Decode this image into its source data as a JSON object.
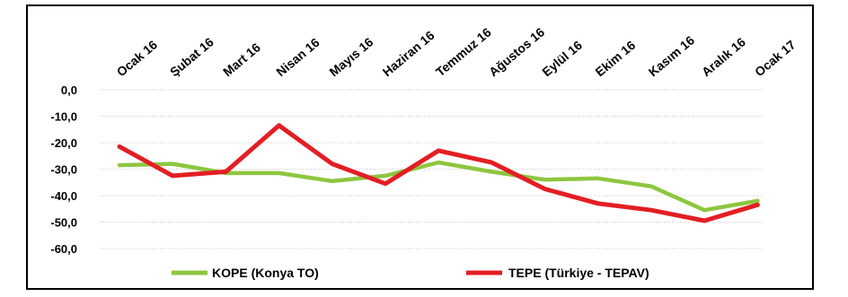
{
  "chart_data": {
    "type": "line",
    "categories": [
      "Ocak 16",
      "Şubat 16",
      "Mart 16",
      "Nisan 16",
      "Mayıs 16",
      "Haziran 16",
      "Temmuz 16",
      "Ağustos 16",
      "Eylül 16",
      "Ekim 16",
      "Kasım 16",
      "Aralık 16",
      "Ocak 17"
    ],
    "series": [
      {
        "name": "KOPE (Konya TO)",
        "color": "#8dc63f",
        "values": [
          -28.5,
          -28.0,
          -31.5,
          -31.5,
          -34.5,
          -32.5,
          -27.5,
          -31.0,
          -34.0,
          -33.5,
          -36.5,
          -45.5,
          -42.0
        ]
      },
      {
        "name": "TEPE (Türkiye - TEPAV)",
        "color": "#e31e24",
        "values": [
          -21.5,
          -32.5,
          -31.0,
          -13.5,
          -28.0,
          -35.5,
          -23.0,
          -27.5,
          -37.5,
          -43.0,
          -45.5,
          -49.5,
          -43.5
        ]
      }
    ],
    "yticks": [
      "0,0",
      "-10,0",
      "-20,0",
      "-30,0",
      "-40,0",
      "-50,0",
      "-60,0"
    ],
    "ylim": [
      -60,
      0
    ],
    "grid": true,
    "legend_position": "bottom"
  }
}
